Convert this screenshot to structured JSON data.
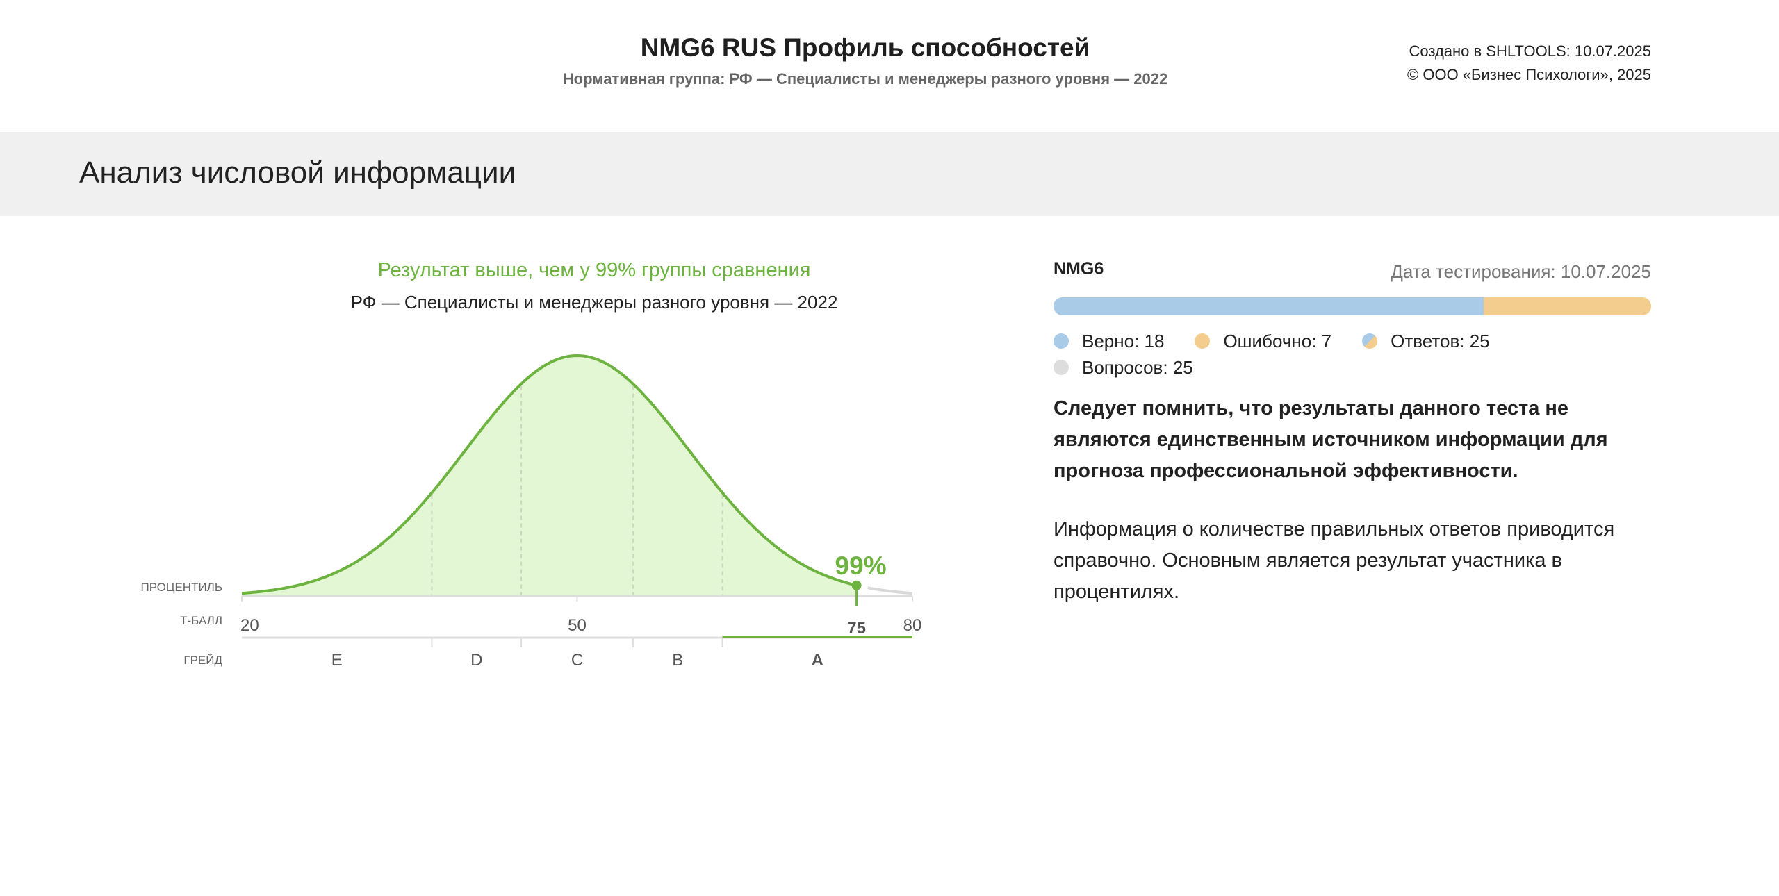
{
  "header": {
    "title": "NMG6 RUS Профиль способностей",
    "norm_group": "Нормативная группа: РФ — Специалисты и менеджеры разного уровня — 2022",
    "created": "Создано в SHLTOOLS: 10.07.2025",
    "copyright": "© ООО «Бизнес Психологи», 2025"
  },
  "section": {
    "title": "Анализ числовой информации"
  },
  "result": {
    "headline": "Результат выше, чем у 99% группы сравнения",
    "group": "РФ — Специалисты и менеджеры разного уровня — 2022"
  },
  "chart": {
    "row_labels": {
      "percentile": "ПРОЦЕНТИЛЬ",
      "tscore": "Т-БАЛЛ",
      "grade": "ГРЕЙД"
    },
    "percentile_label": "99%",
    "tick_labels": [
      "20",
      "50",
      "75",
      "80"
    ],
    "grades": [
      "E",
      "D",
      "C",
      "B",
      "A"
    ],
    "accent_color": "#6db33f",
    "fill_color": "#e4f7d4"
  },
  "chart_data": {
    "type": "area",
    "title": "",
    "x_axis": "Т-БАЛЛ",
    "xlim": [
      20,
      80
    ],
    "distribution": {
      "kind": "normal",
      "mean": 50,
      "sd": 10
    },
    "grade_boundaries": [
      37,
      45,
      55,
      63
    ],
    "grades": [
      "E",
      "D",
      "C",
      "B",
      "A"
    ],
    "participant": {
      "tscore": 75,
      "percentile": 99,
      "grade": "A"
    }
  },
  "test": {
    "name": "NMG6",
    "date": "Дата тестирования: 10.07.2025",
    "correct": 18,
    "wrong": 7,
    "answered": 25,
    "questions": 25,
    "legend": {
      "correct": "Верно: 18",
      "wrong": "Ошибочно: 7",
      "answered": "Ответов: 25",
      "questions": "Вопросов: 25"
    },
    "colors": {
      "correct": "#a9cbe8",
      "wrong": "#f3cd8d",
      "questions": "#dddddd"
    }
  },
  "notes": {
    "bold": "Следует помнить, что результаты данного теста не являются единственным источником информации для прогноза профессиональной эффективности.",
    "regular": "Информация о количестве правильных ответов приводится справочно. Основным является результат участника в процентилях."
  }
}
